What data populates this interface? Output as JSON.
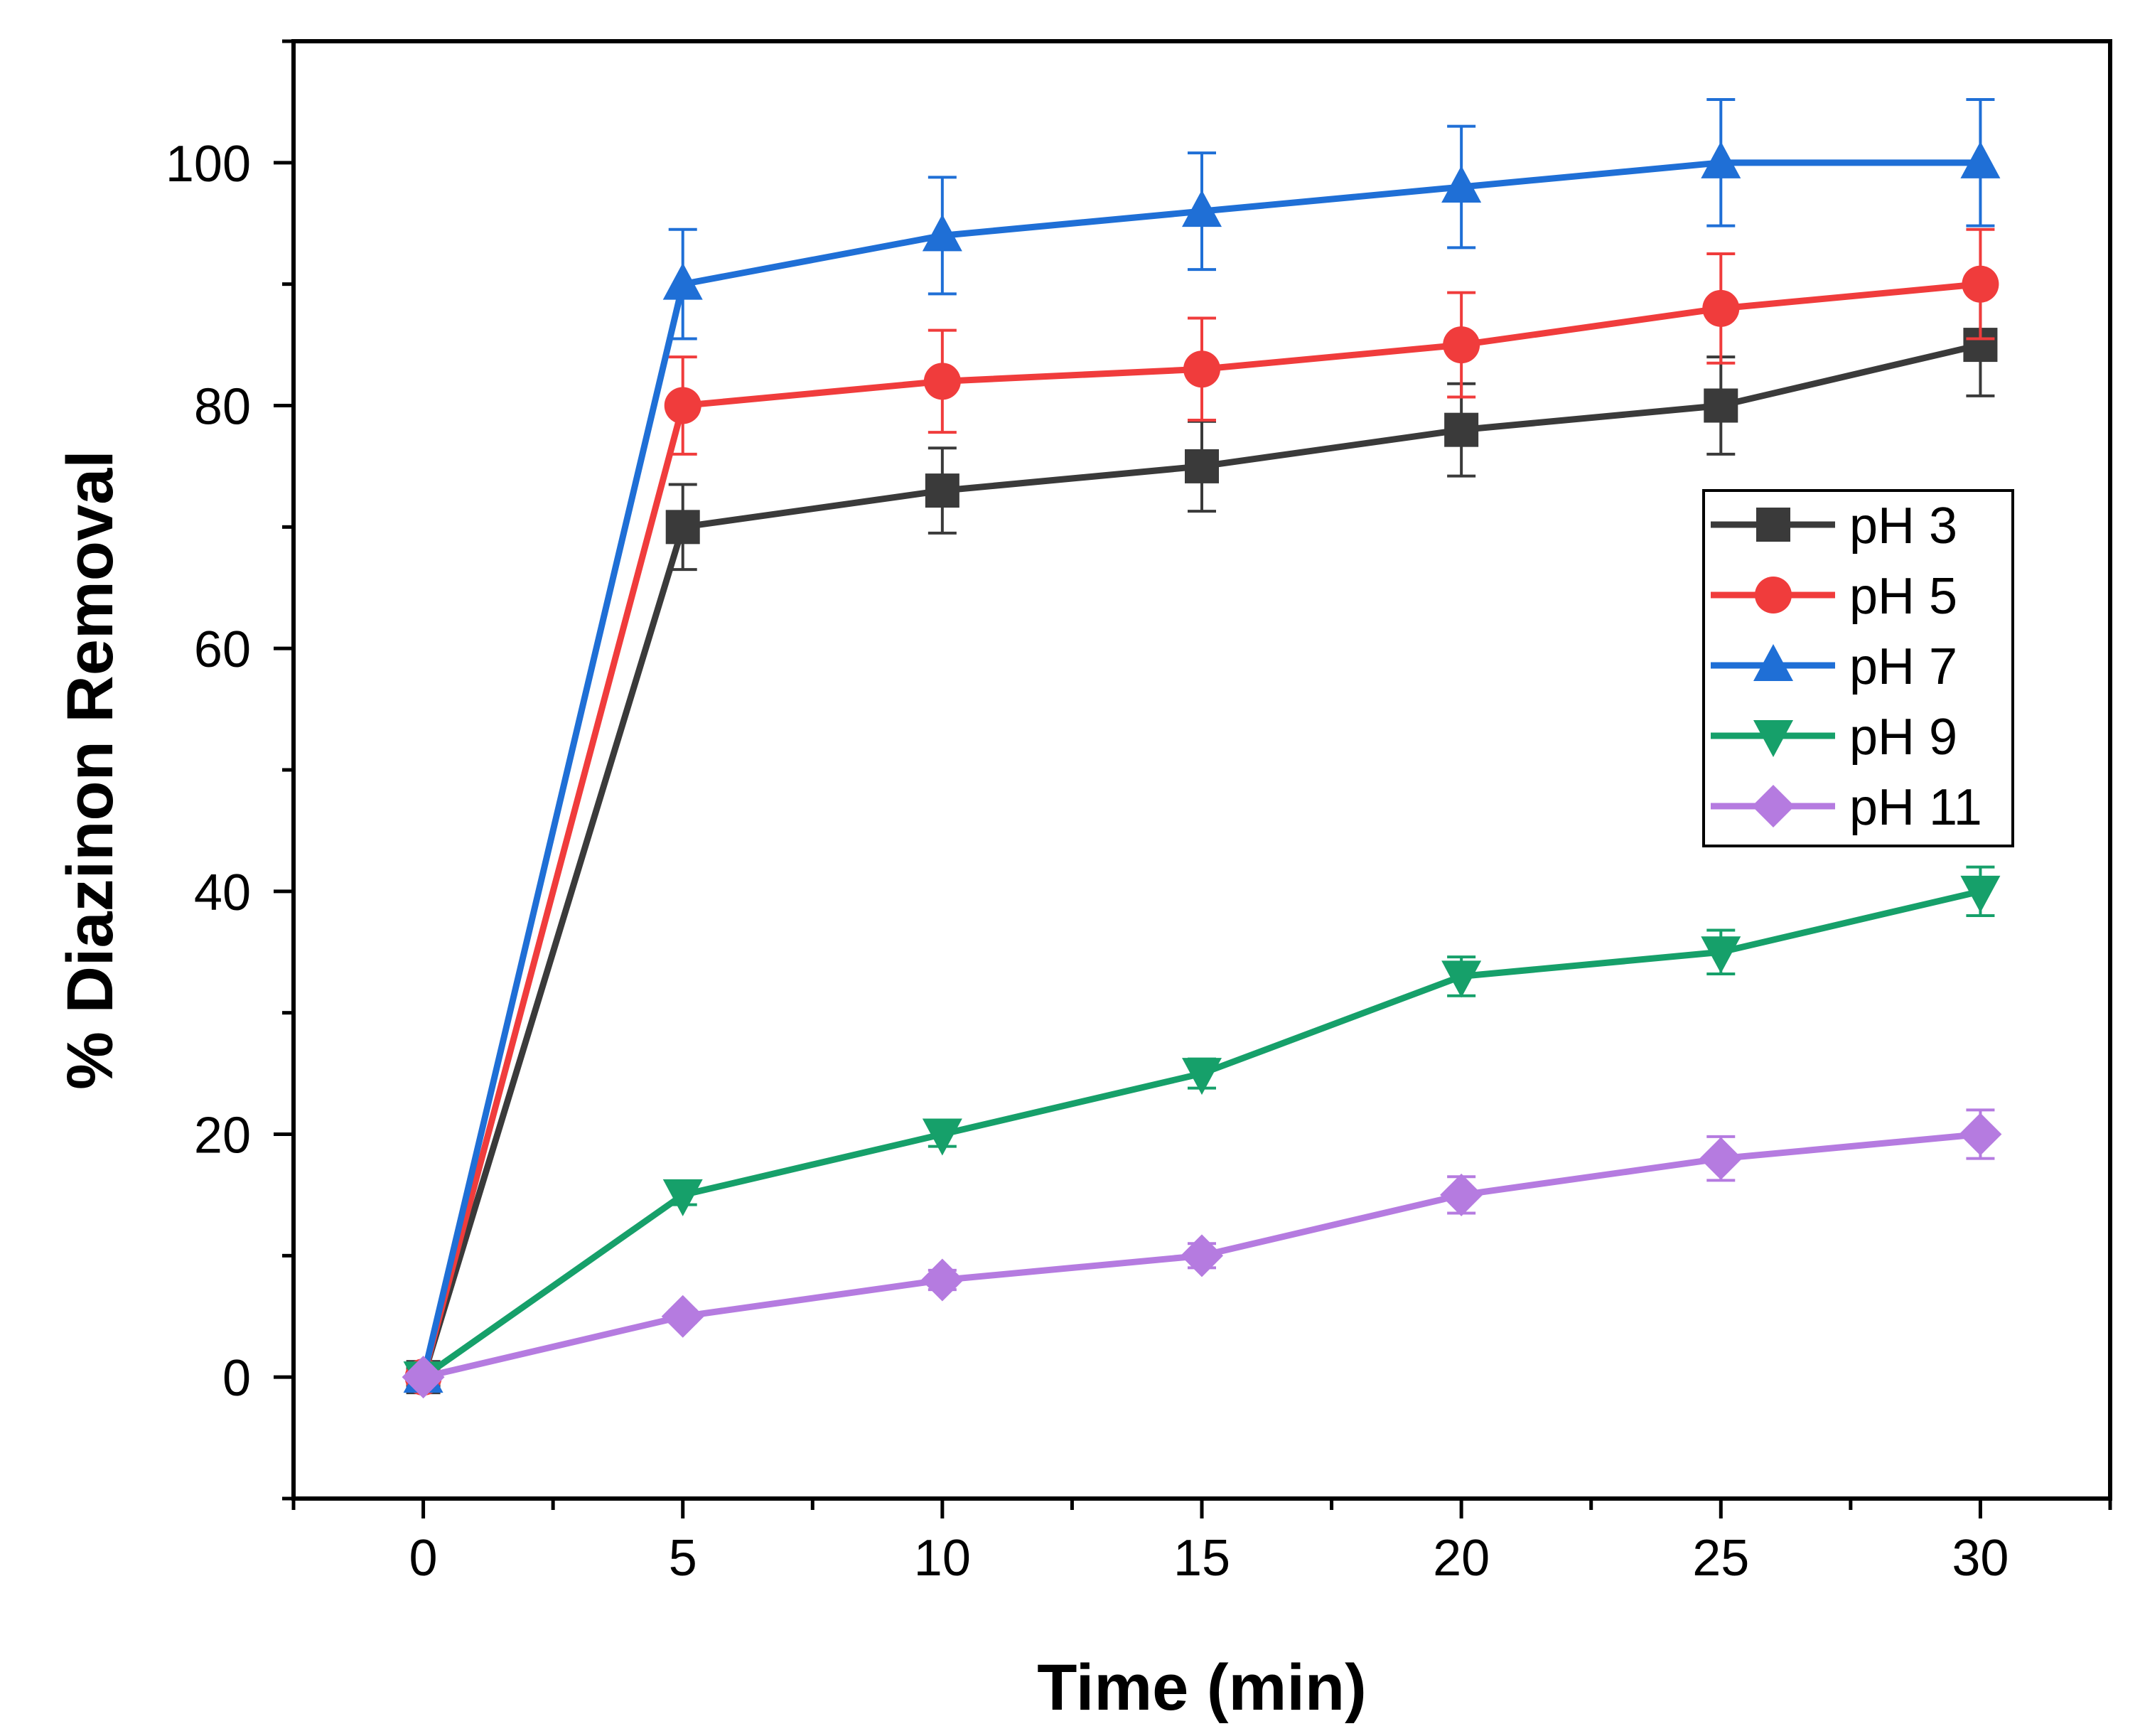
{
  "chart_data": {
    "type": "line",
    "title": "",
    "xlabel": "Time (min)",
    "ylabel": "% Diazinon Removal",
    "xlim": [
      -2.5,
      32.5
    ],
    "ylim": [
      -10,
      110
    ],
    "x_major_ticks": [
      0,
      5,
      10,
      15,
      20,
      25,
      30
    ],
    "x_tick_labels": [
      "0",
      "5",
      "10",
      "15",
      "20",
      "25",
      "30"
    ],
    "x_minor_ticks": [
      -2.5,
      2.5,
      7.5,
      12.5,
      17.5,
      22.5,
      27.5,
      32.5
    ],
    "y_major_ticks": [
      0,
      20,
      40,
      60,
      80,
      100
    ],
    "y_tick_labels": [
      "0",
      "20",
      "40",
      "60",
      "80",
      "100"
    ],
    "y_minor_ticks": [
      -10,
      10,
      30,
      50,
      70,
      90,
      110
    ],
    "grid": false,
    "legend_position": "right-middle",
    "x": [
      0,
      5,
      10,
      15,
      20,
      25,
      30
    ],
    "series": [
      {
        "name": "pH 3",
        "label": "pH 3",
        "color": "#3a3a3a",
        "marker": "square",
        "values": [
          0,
          70,
          73,
          75,
          78,
          80,
          85
        ],
        "errors": [
          0,
          3.5,
          3.5,
          3.7,
          3.8,
          4,
          4.2
        ]
      },
      {
        "name": "pH 5",
        "label": "pH 5",
        "color": "#f03c3c",
        "marker": "circle",
        "values": [
          0,
          80,
          82,
          83,
          85,
          88,
          90
        ],
        "errors": [
          0,
          4,
          4.2,
          4.2,
          4.3,
          4.5,
          4.5
        ]
      },
      {
        "name": "pH 7",
        "label": "pH 7",
        "color": "#1f6fd6",
        "marker": "triangle-up",
        "values": [
          0,
          90,
          94,
          96,
          98,
          100,
          100
        ],
        "errors": [
          0,
          4.5,
          4.8,
          4.8,
          5,
          5.2,
          5.2
        ]
      },
      {
        "name": "pH 9",
        "label": "pH 9",
        "color": "#16a06a",
        "marker": "triangle-down",
        "values": [
          0,
          15,
          20,
          25,
          33,
          35,
          40
        ],
        "errors": [
          0,
          0.8,
          1,
          1.2,
          1.6,
          1.8,
          2
        ]
      },
      {
        "name": "pH 11",
        "label": "pH 11",
        "color": "#b57be0",
        "marker": "diamond",
        "values": [
          0,
          5,
          8,
          10,
          15,
          18,
          20
        ],
        "errors": [
          0,
          0.5,
          0.8,
          1,
          1.5,
          1.8,
          2
        ]
      }
    ]
  }
}
